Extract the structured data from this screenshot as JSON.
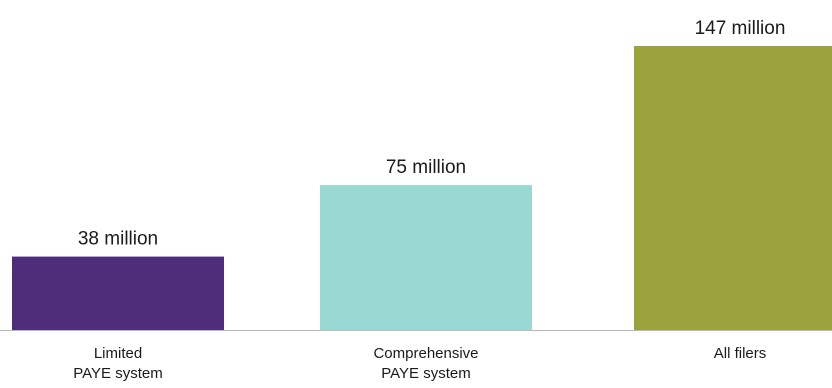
{
  "chart_data": {
    "type": "bar",
    "categories": [
      [
        "Limited",
        "PAYE system"
      ],
      [
        "Comprehensive",
        "PAYE system"
      ],
      [
        "All filers"
      ]
    ],
    "values": [
      38,
      75,
      147
    ],
    "data_labels": [
      "38 million",
      "75 million",
      "147 million"
    ],
    "colors": [
      "#4e2d7a",
      "#99d9d4",
      "#9aa33c"
    ],
    "title": "",
    "xlabel": "",
    "ylabel": "",
    "ylim": [
      0,
      147
    ],
    "grid": false,
    "legend": "none"
  }
}
